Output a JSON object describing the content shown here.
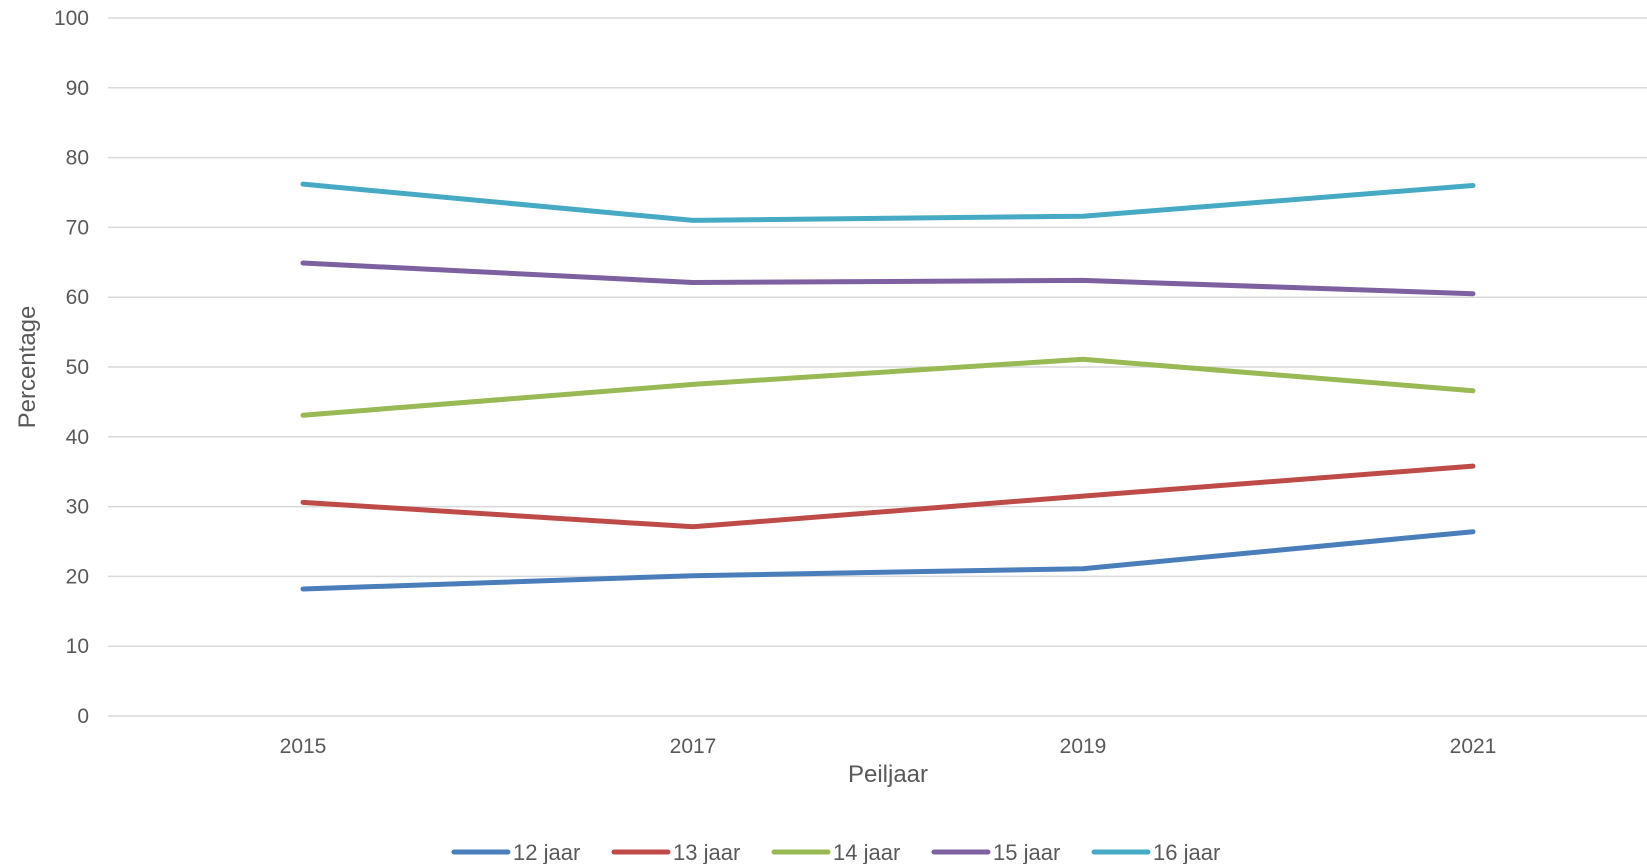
{
  "chart_data": {
    "type": "line",
    "title": "",
    "xlabel": "Peiljaar",
    "ylabel": "Percentage",
    "categories": [
      "2015",
      "2017",
      "2019",
      "2021"
    ],
    "ylim": [
      0,
      100
    ],
    "yticks": [
      "0",
      "10",
      "20",
      "30",
      "40",
      "50",
      "60",
      "70",
      "80",
      "90",
      "100"
    ],
    "grid": true,
    "legend_position": "bottom",
    "series": [
      {
        "name": "12 jaar",
        "color": "#4a7ebb",
        "values": [
          18.2,
          20.1,
          21.1,
          26.4
        ]
      },
      {
        "name": "13 jaar",
        "color": "#be4b48",
        "values": [
          30.6,
          27.1,
          31.5,
          35.8
        ]
      },
      {
        "name": "14 jaar",
        "color": "#98b954",
        "values": [
          43.1,
          47.5,
          51.1,
          46.6
        ]
      },
      {
        "name": "15 jaar",
        "color": "#7d60a0",
        "values": [
          64.9,
          62.1,
          62.4,
          60.5
        ]
      },
      {
        "name": "16 jaar",
        "color": "#46aac4",
        "values": [
          76.2,
          71.0,
          71.6,
          76.0
        ]
      }
    ]
  }
}
